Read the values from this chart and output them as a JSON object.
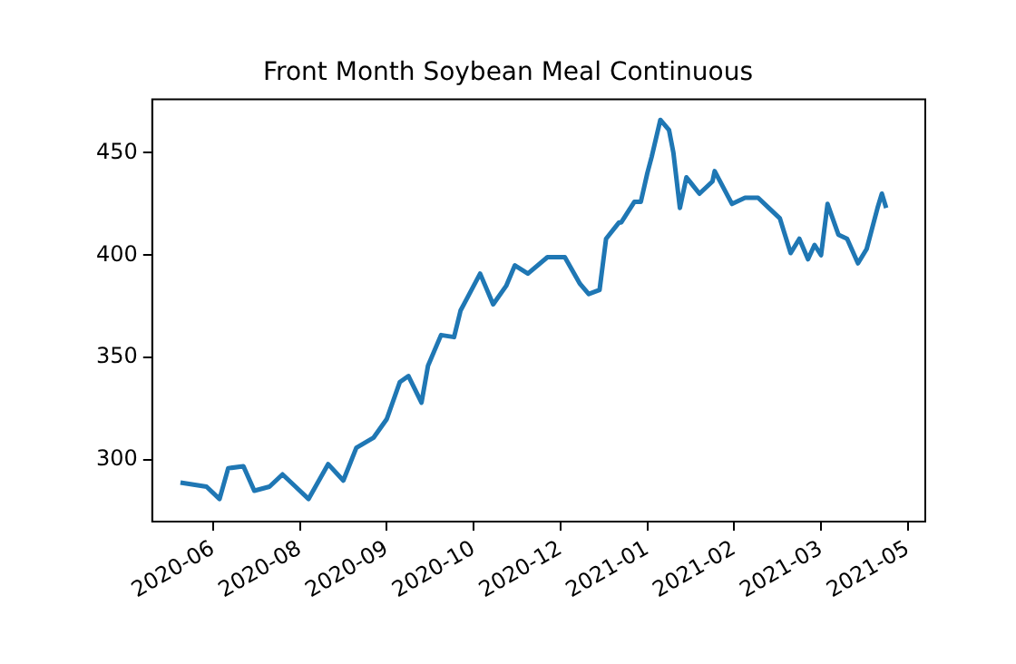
{
  "chart_data": {
    "type": "line",
    "title": "Front Month Soybean Meal Continuous",
    "x": [
      "2020-06-09",
      "2020-06-21",
      "2020-06-27",
      "2020-07-01",
      "2020-07-08",
      "2020-07-13",
      "2020-07-20",
      "2020-07-26",
      "2020-07-31",
      "2020-08-07",
      "2020-08-16",
      "2020-08-23",
      "2020-08-29",
      "2020-09-06",
      "2020-09-12",
      "2020-09-18",
      "2020-09-22",
      "2020-09-28",
      "2020-10-01",
      "2020-10-07",
      "2020-10-13",
      "2020-10-16",
      "2020-10-25",
      "2020-10-31",
      "2020-11-06",
      "2020-11-10",
      "2020-11-16",
      "2020-11-25",
      "2020-12-03",
      "2020-12-10",
      "2020-12-14",
      "2020-12-19",
      "2020-12-22",
      "2020-12-28",
      "2020-12-29",
      "2021-01-04",
      "2021-01-07",
      "2021-01-10",
      "2021-01-12",
      "2021-01-16",
      "2021-01-20",
      "2021-01-22",
      "2021-01-25",
      "2021-01-28",
      "2021-02-03",
      "2021-02-09",
      "2021-02-10",
      "2021-02-18",
      "2021-02-24",
      "2021-03-02",
      "2021-03-07",
      "2021-03-12",
      "2021-03-17",
      "2021-03-21",
      "2021-03-25",
      "2021-03-28",
      "2021-03-31",
      "2021-04-03",
      "2021-04-08",
      "2021-04-12",
      "2021-04-17",
      "2021-04-21",
      "2021-04-26",
      "2021-04-28",
      "2021-04-30"
    ],
    "series": [
      {
        "color": "#1f77b4",
        "values": [
          289,
          287,
          281,
          296,
          297,
          285,
          287,
          293,
          288,
          281,
          298,
          290,
          306,
          311,
          320,
          338,
          341,
          328,
          346,
          361,
          360,
          373,
          391,
          376,
          385,
          395,
          391,
          399,
          399,
          386,
          381,
          383,
          408,
          416,
          416,
          426,
          426,
          440,
          448,
          466,
          461,
          450,
          423,
          438,
          430,
          436,
          441,
          425,
          428,
          428,
          423,
          418,
          401,
          408,
          398,
          405,
          400,
          425,
          410,
          408,
          396,
          403,
          423,
          430,
          423
        ]
      }
    ],
    "xlim": [
      "2020-05-27",
      "2021-05-18"
    ],
    "xticks": [
      {
        "value": "2020-06-24",
        "label": "2020-06"
      },
      {
        "value": "2020-08-03",
        "label": "2020-08"
      },
      {
        "value": "2020-09-12",
        "label": "2020-09"
      },
      {
        "value": "2020-10-22",
        "label": "2020-10"
      },
      {
        "value": "2020-12-01",
        "label": "2020-12"
      },
      {
        "value": "2021-01-10",
        "label": "2021-01"
      },
      {
        "value": "2021-02-19",
        "label": "2021-02"
      },
      {
        "value": "2021-03-31",
        "label": "2021-03"
      },
      {
        "value": "2021-05-10",
        "label": "2021-05"
      }
    ],
    "ylim": [
      270,
      476
    ],
    "yticks": [
      300,
      350,
      400,
      450
    ],
    "grid": false,
    "legend": false,
    "marker": "none",
    "line_style": "solid"
  }
}
